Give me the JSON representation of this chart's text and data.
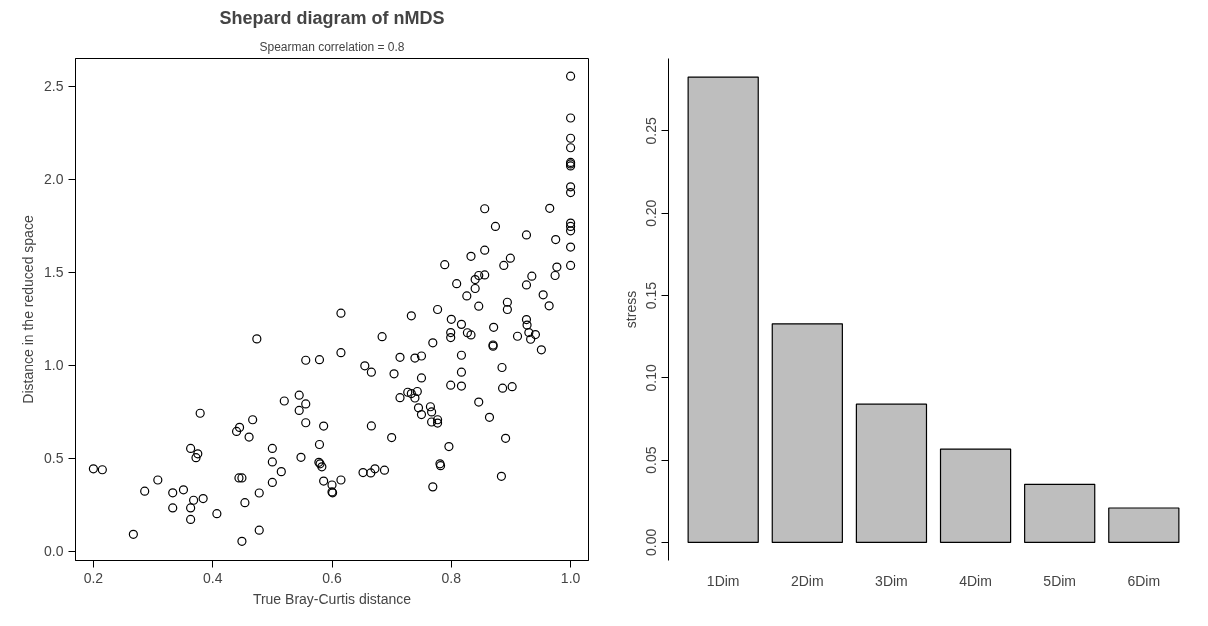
{
  "chart_data": [
    {
      "type": "scatter",
      "title": "Shepard diagram of nMDS",
      "subtitle": "Spearman correlation = 0.8",
      "xlabel": "True Bray-Curtis distance",
      "ylabel": "Distance in the reduced space",
      "marker": "circle",
      "xlim": [
        0.17,
        1.03
      ],
      "ylim": [
        -0.05,
        2.65
      ],
      "xticks": [
        0.2,
        0.4,
        0.6,
        0.8,
        {
          "value": 1,
          "label": "1.0"
        }
      ],
      "yticks": [
        {
          "value": 0,
          "label": "0.0"
        },
        0.5,
        {
          "value": 1,
          "label": "1.0"
        },
        1.5,
        {
          "value": 2,
          "label": "2.0"
        },
        2.5
      ],
      "series": [
        {
          "color": "#000000",
          "x": [
            0.2,
            0.215,
            0.267,
            0.286,
            0.308,
            0.333,
            0.333,
            0.351,
            0.363,
            0.363,
            0.363,
            0.368,
            0.375,
            0.372,
            0.379,
            0.384,
            0.407,
            0.44,
            0.445,
            0.444,
            0.449,
            0.449,
            0.454,
            0.461,
            0.467,
            0.474,
            0.478,
            0.478,
            0.5,
            0.5,
            0.5,
            0.515,
            0.52,
            0.545,
            0.545,
            0.548,
            0.556,
            0.556,
            0.556,
            0.586,
            0.579,
            0.579,
            0.578,
            0.58,
            0.583,
            0.586,
            0.6,
            0.6,
            0.601,
            0.615,
            0.615,
            0.615,
            1.0,
            1.0,
            1.0,
            1.0,
            1.0,
            1.0,
            1.0,
            1.0,
            1.0,
            1.0,
            1.0,
            1.0,
            1.0,
            1.0,
            0.965,
            0.975,
            0.977,
            0.974,
            0.954,
            0.964,
            0.926,
            0.935,
            0.926,
            0.899,
            0.888,
            0.926,
            0.927,
            0.93,
            0.941,
            0.933,
            0.911,
            0.951,
            0.894,
            0.894,
            0.871,
            0.87,
            0.87,
            0.885,
            0.886,
            0.902,
            0.846,
            0.864,
            0.891,
            0.884,
            0.856,
            0.874,
            0.856,
            0.833,
            0.789,
            0.856,
            0.846,
            0.84,
            0.84,
            0.809,
            0.826,
            0.846,
            0.777,
            0.8,
            0.817,
            0.799,
            0.799,
            0.827,
            0.833,
            0.769,
            0.733,
            0.684,
            0.714,
            0.739,
            0.75,
            0.704,
            0.655,
            0.666,
            0.75,
            0.817,
            0.817,
            0.799,
            0.817,
            0.727,
            0.733,
            0.743,
            0.714,
            0.739,
            0.745,
            0.75,
            0.765,
            0.767,
            0.767,
            0.777,
            0.777,
            0.666,
            0.7,
            0.796,
            0.652,
            0.665,
            0.672,
            0.688,
            0.781,
            0.782,
            0.769
          ],
          "values": [
            0.443,
            0.438,
            0.091,
            0.323,
            0.383,
            0.314,
            0.233,
            0.33,
            0.553,
            0.233,
            0.171,
            0.274,
            0.524,
            0.503,
            0.742,
            0.283,
            0.202,
            0.644,
            0.666,
            0.394,
            0.394,
            0.053,
            0.261,
            0.614,
            0.707,
            1.142,
            0.313,
            0.113,
            0.553,
            0.48,
            0.37,
            0.428,
            0.808,
            0.839,
            0.757,
            0.505,
            1.027,
            0.792,
            0.691,
            0.673,
            1.03,
            0.574,
            0.478,
            0.47,
            0.454,
            0.377,
            0.356,
            0.319,
            0.314,
            1.28,
            1.068,
            0.383,
            2.555,
            2.33,
            2.221,
            2.17,
            2.091,
            2.083,
            2.072,
            1.96,
            1.929,
            1.765,
            1.747,
            1.723,
            1.636,
            1.537,
            1.844,
            1.676,
            1.528,
            1.483,
            1.379,
            1.32,
            1.701,
            1.479,
            1.432,
            1.576,
            1.537,
            1.246,
            1.216,
            1.176,
            1.165,
            1.14,
            1.156,
            1.083,
            1.339,
            1.3,
            1.204,
            1.109,
            1.103,
            0.988,
            0.877,
            0.885,
            0.802,
            0.72,
            0.607,
            0.403,
            1.842,
            1.747,
            1.619,
            1.586,
            1.541,
            1.486,
            1.483,
            1.461,
            1.413,
            1.439,
            1.373,
            1.318,
            1.3,
            1.247,
            1.22,
            1.176,
            1.149,
            1.175,
            1.163,
            1.121,
            1.266,
            1.154,
            1.043,
            1.039,
            1.05,
            0.954,
            0.997,
            0.963,
            0.932,
            1.054,
            0.963,
            0.893,
            0.888,
            0.855,
            0.848,
            0.859,
            0.826,
            0.824,
            0.771,
            0.735,
            0.777,
            0.749,
            0.695,
            0.707,
            0.689,
            0.674,
            0.611,
            0.563,
            0.423,
            0.421,
            0.443,
            0.436,
            0.47,
            0.46,
            0.346
          ]
        }
      ]
    },
    {
      "type": "bar",
      "ylabel": "stress",
      "categories": [
        "1Dim",
        "2Dim",
        "3Dim",
        "4Dim",
        "5Dim",
        "6Dim"
      ],
      "values": [
        0.2827,
        0.1328,
        0.084,
        0.0567,
        0.0353,
        0.0209
      ],
      "color": "#bebebe",
      "ylim": [
        -0.011,
        0.294
      ],
      "yticks": [
        {
          "value": 0,
          "label": "0.00"
        },
        0.05,
        {
          "value": 0.1,
          "label": "0.10"
        },
        0.15,
        {
          "value": 0.2,
          "label": "0.20"
        },
        0.25
      ]
    }
  ]
}
